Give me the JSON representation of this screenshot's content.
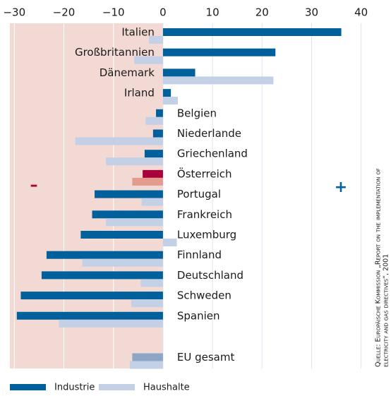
{
  "chart_data": {
    "type": "hbar",
    "categories": [
      "Italien",
      "Großbritannien",
      "Dänemark",
      "Irland",
      "Belgien",
      "Niederlande",
      "Griechenland",
      "Österreich",
      "Portugal",
      "Frankreich",
      "Luxemburg",
      "Finnland",
      "Deutschland",
      "Schweden",
      "Spanien",
      "EU gesamt"
    ],
    "series": [
      {
        "name": "Industrie",
        "color": "#00609b",
        "colors": [
          "#00609b",
          "#00609b",
          "#00609b",
          "#00609b",
          "#00609b",
          "#00609b",
          "#00609b",
          "#a8003b",
          "#00609b",
          "#00609b",
          "#00609b",
          "#00609b",
          "#00609b",
          "#00609b",
          "#00609b",
          "#8da6c6"
        ],
        "values": [
          36,
          22.7,
          6.5,
          1.6,
          -1.4,
          -2.0,
          -3.7,
          -4.1,
          -13.8,
          -14.3,
          -16.6,
          -23.5,
          -24.5,
          -28.7,
          -29.5,
          -6.2
        ]
      },
      {
        "name": "Haushalte",
        "color": "#c3d0e6",
        "colors": [
          "#c3d0e6",
          "#c3d0e6",
          "#c3d0e6",
          "#c3d0e6",
          "#c3d0e6",
          "#c3d0e6",
          "#c3d0e6",
          "#e39b8e",
          "#c3d0e6",
          "#c3d0e6",
          "#c3d0e6",
          "#c3d0e6",
          "#c3d0e6",
          "#c3d0e6",
          "#c3d0e6",
          "#c3d0e6"
        ],
        "values": [
          -2.8,
          -5.8,
          22.3,
          3.0,
          -3.5,
          -17.7,
          -11.5,
          -6.2,
          -4.3,
          -11.5,
          2.8,
          -16.3,
          -4.5,
          -6.4,
          -21,
          -6.7
        ]
      }
    ],
    "xlim": [
      -30.9,
      40.9
    ],
    "xticks": [
      {
        "value": -30,
        "label": "−30"
      },
      {
        "value": -20,
        "label": "−20"
      },
      {
        "value": -10,
        "label": "−10"
      },
      0,
      10,
      20,
      30,
      40
    ],
    "annotations": [
      {
        "text": "–",
        "color": "#a8003b"
      },
      {
        "text": "+",
        "color": "#00609b"
      }
    ],
    "source": [
      "Quelle: Europäische Kommission „Report on the implementation of",
      "electricity and gas directives“, 2001"
    ],
    "negative_background": "#f3d9d3",
    "grid": true
  }
}
